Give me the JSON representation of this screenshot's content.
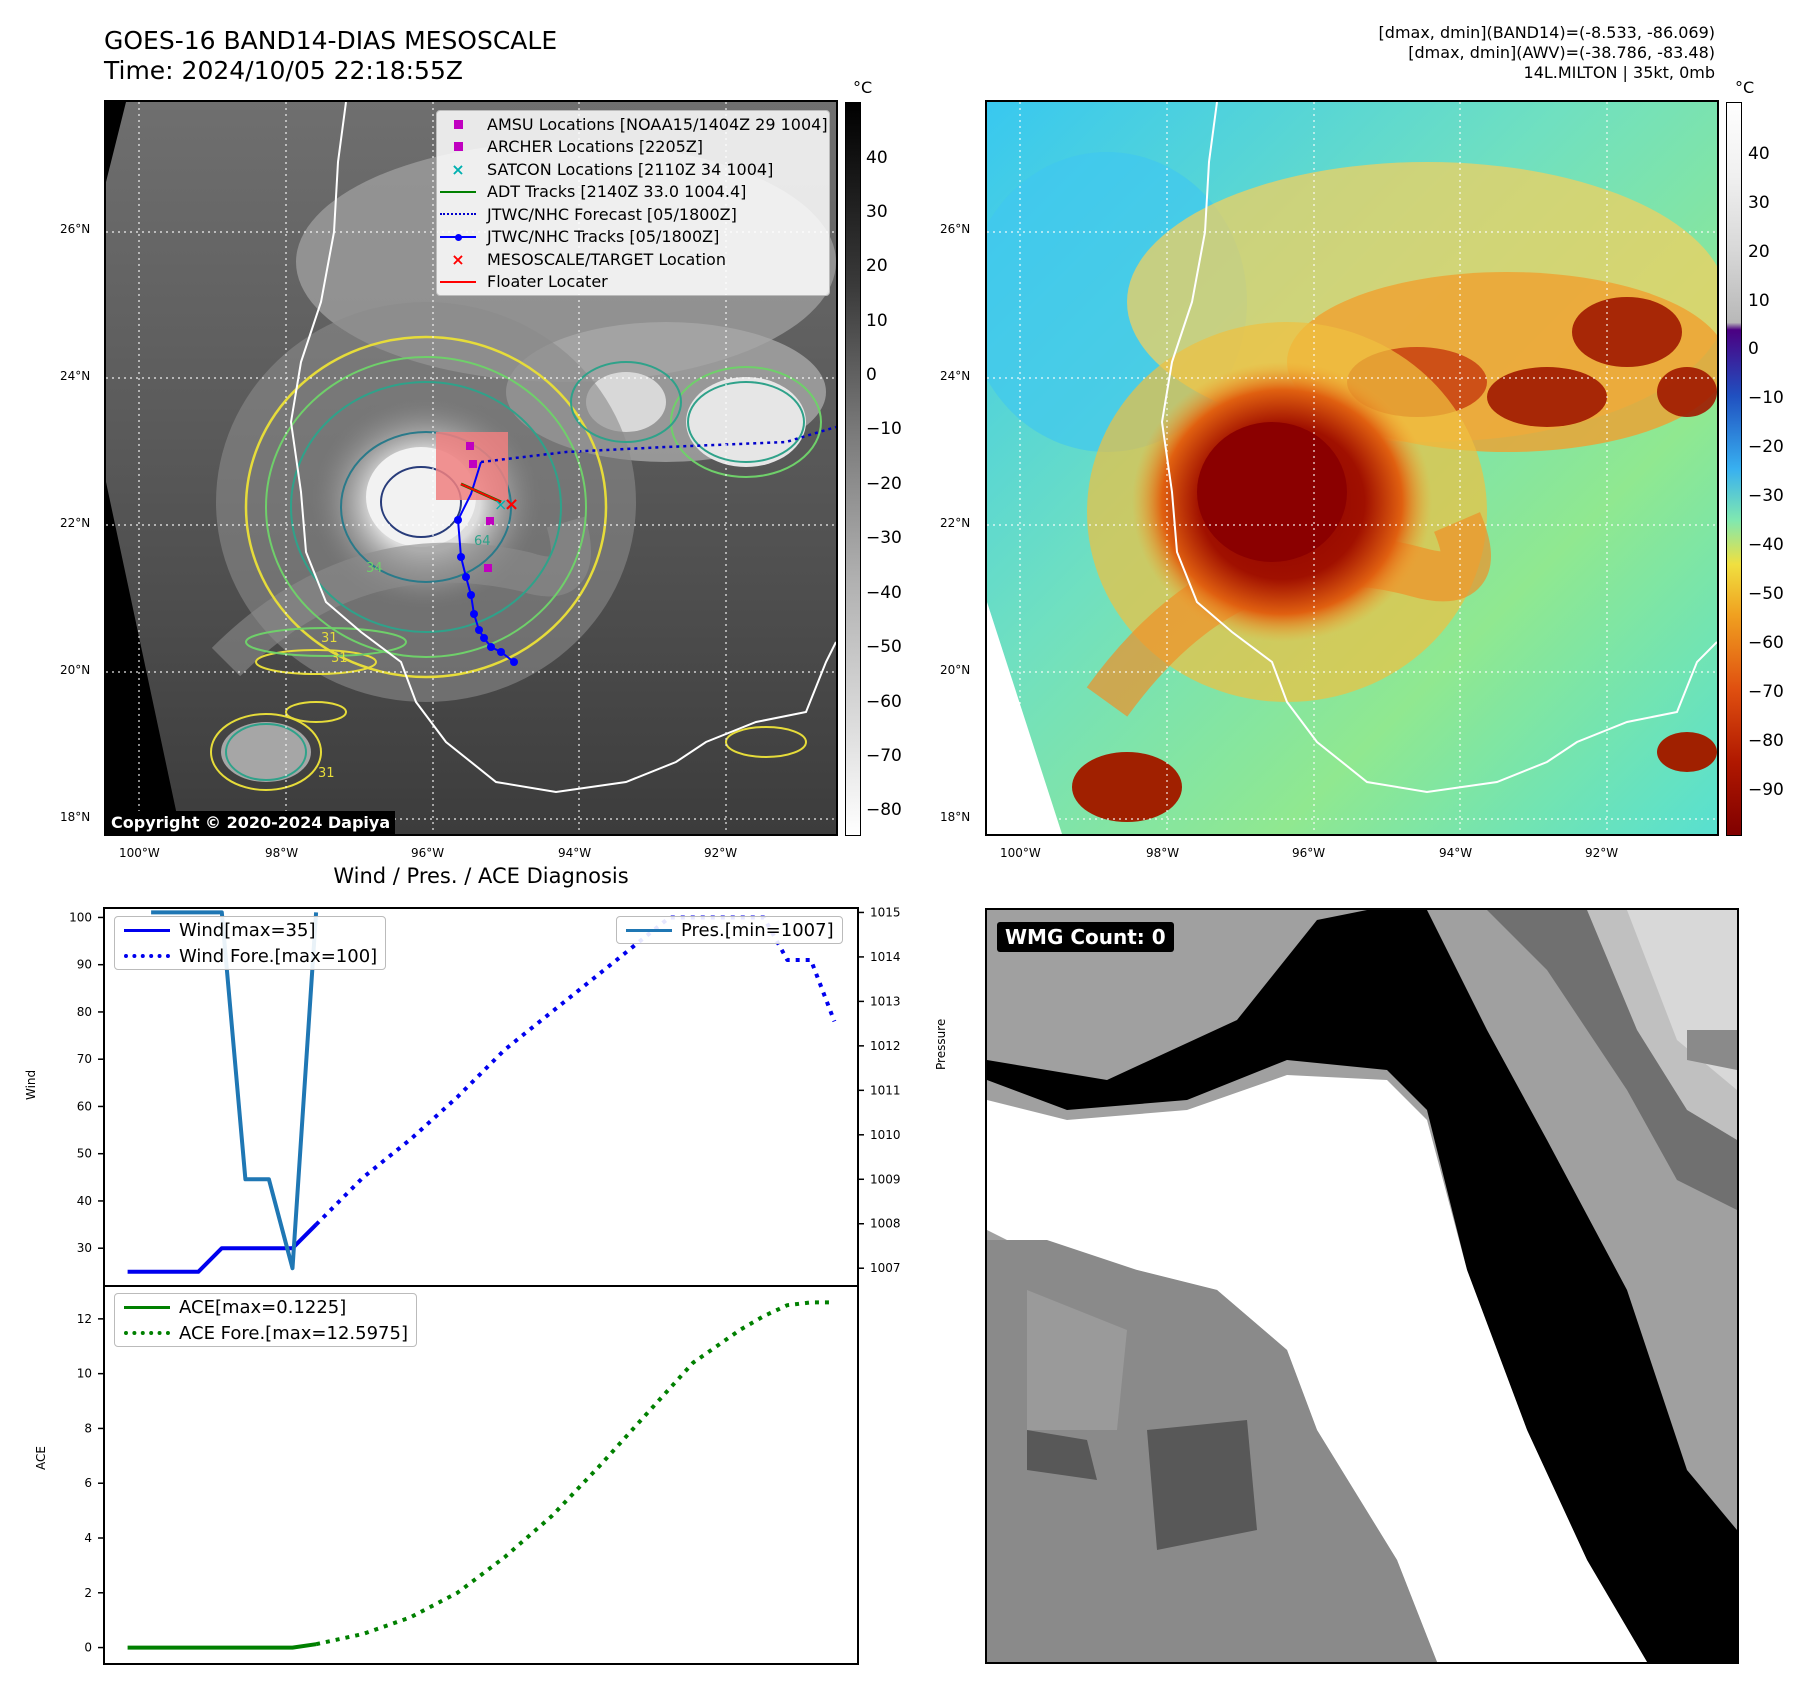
{
  "header": {
    "title_line1": "GOES-16 BAND14-DIAS MESOSCALE",
    "title_line2": "Time: 2024/10/05 22:18:55Z",
    "info_line1": "[dmax, dmin](BAND14)=(-8.533, -86.069)",
    "info_line2": "[dmax, dmin](AWV)=(-38.786, -83.48)",
    "info_line3": "14L.MILTON | 35kt, 0mb"
  },
  "map_axes": {
    "lat_labels": [
      "26°N",
      "24°N",
      "22°N",
      "20°N",
      "18°N"
    ],
    "lon_labels": [
      "100°W",
      "98°W",
      "96°W",
      "94°W",
      "92°W"
    ]
  },
  "left_map": {
    "colorbar_unit": "°C",
    "colorbar_ticks": [
      "40",
      "30",
      "20",
      "10",
      "0",
      "−10",
      "−20",
      "−30",
      "−40",
      "−50",
      "−60",
      "−70",
      "−80"
    ],
    "copyright": "Copyright © 2020-2024 Dapiya",
    "legend": [
      {
        "label": "AMSU Locations [NOAA15/1404Z 29 1004]",
        "symbol": "square",
        "color": "#c000c0"
      },
      {
        "label": "ARCHER Locations [2205Z]",
        "symbol": "square",
        "color": "#c000c0"
      },
      {
        "label": "SATCON Locations [2110Z 34 1004]",
        "symbol": "x",
        "color": "#00b0b0"
      },
      {
        "label": "ADT Tracks [2140Z 33.0 1004.4]",
        "symbol": "line",
        "color": "#008000"
      },
      {
        "label": "JTWC/NHC Forecast [05/1800Z]",
        "symbol": "dotted",
        "color": "#0000cc"
      },
      {
        "label": "JTWC/NHC Tracks [05/1800Z]",
        "symbol": "line-dot",
        "color": "#0000ff"
      },
      {
        "label": "MESOSCALE/TARGET Location",
        "symbol": "x",
        "color": "#ff0000"
      },
      {
        "label": "Floater Locater",
        "symbol": "line",
        "color": "#ff0000"
      }
    ],
    "contour_labels": [
      "31",
      "34",
      "64",
      "31",
      "31"
    ]
  },
  "right_map": {
    "colorbar_unit": "°C",
    "colorbar_ticks": [
      "40",
      "30",
      "20",
      "10",
      "0",
      "−10",
      "−20",
      "−30",
      "−40",
      "−50",
      "−60",
      "−70",
      "−80",
      "−90"
    ]
  },
  "diagnosis": {
    "title": "Wind / Pres. / ACE Diagnosis",
    "wind_ylabel": "Wind",
    "pressure_ylabel": "Pressure",
    "ace_ylabel": "ACE",
    "wind_legend": [
      "Wind[max=35]",
      "Wind Fore.[max=100]"
    ],
    "pres_legend": [
      "Pres.[min=1007]"
    ],
    "ace_legend": [
      "ACE[max=0.1225]",
      "ACE Fore.[max=12.5975]"
    ]
  },
  "wmg": {
    "label": "WMG Count: 0"
  },
  "colors": {
    "wind": "#0000ee",
    "pressure": "#1f77b4",
    "ace": "#008000"
  },
  "chart_data": [
    {
      "type": "line",
      "title": "Wind / Pres. / ACE Diagnosis",
      "ylabel": "Wind",
      "ylim": [
        22,
        102
      ],
      "yticks": [
        30,
        40,
        50,
        60,
        70,
        80,
        90,
        100
      ],
      "series": [
        {
          "name": "Wind[max=35]",
          "style": "solid",
          "x": [
            0,
            1,
            2,
            3,
            4,
            5,
            6,
            7,
            8
          ],
          "values": [
            25,
            25,
            25,
            25,
            30,
            30,
            30,
            30,
            35
          ]
        },
        {
          "name": "Wind Fore.[max=100]",
          "style": "dotted",
          "x": [
            8,
            10,
            12,
            14,
            16,
            18,
            20,
            21,
            22,
            23,
            24,
            25,
            26,
            27,
            28,
            29,
            30
          ],
          "values": [
            35,
            45,
            53,
            62,
            72,
            80,
            88,
            92,
            96,
            100,
            100,
            100,
            100,
            100,
            91,
            91,
            78
          ]
        }
      ]
    },
    {
      "type": "line",
      "ylabel": "Pressure",
      "ylim": [
        1006.6,
        1015.1
      ],
      "yticks": [
        1007,
        1008,
        1009,
        1010,
        1011,
        1012,
        1013,
        1014,
        1015
      ],
      "series": [
        {
          "name": "Pres.[min=1007]",
          "style": "solid",
          "x": [
            1,
            4,
            5,
            6,
            7,
            8
          ],
          "values": [
            1015,
            1015,
            1009,
            1009,
            1007,
            1015
          ]
        }
      ]
    },
    {
      "type": "line",
      "ylabel": "ACE",
      "ylim": [
        -0.6,
        13.2
      ],
      "yticks": [
        0,
        2,
        4,
        6,
        8,
        10,
        12
      ],
      "series": [
        {
          "name": "ACE[max=0.1225]",
          "style": "solid",
          "x": [
            0,
            7,
            8
          ],
          "values": [
            0,
            0,
            0.1225
          ]
        },
        {
          "name": "ACE Fore.[max=12.5975]",
          "style": "dotted",
          "x": [
            8,
            10,
            12,
            14,
            16,
            18,
            20,
            22,
            24,
            26,
            27,
            28,
            29,
            30
          ],
          "values": [
            0.1225,
            0.5,
            1.1,
            2.0,
            3.3,
            4.8,
            6.6,
            8.5,
            10.4,
            11.6,
            12.1,
            12.5,
            12.6,
            12.6
          ]
        }
      ]
    }
  ]
}
